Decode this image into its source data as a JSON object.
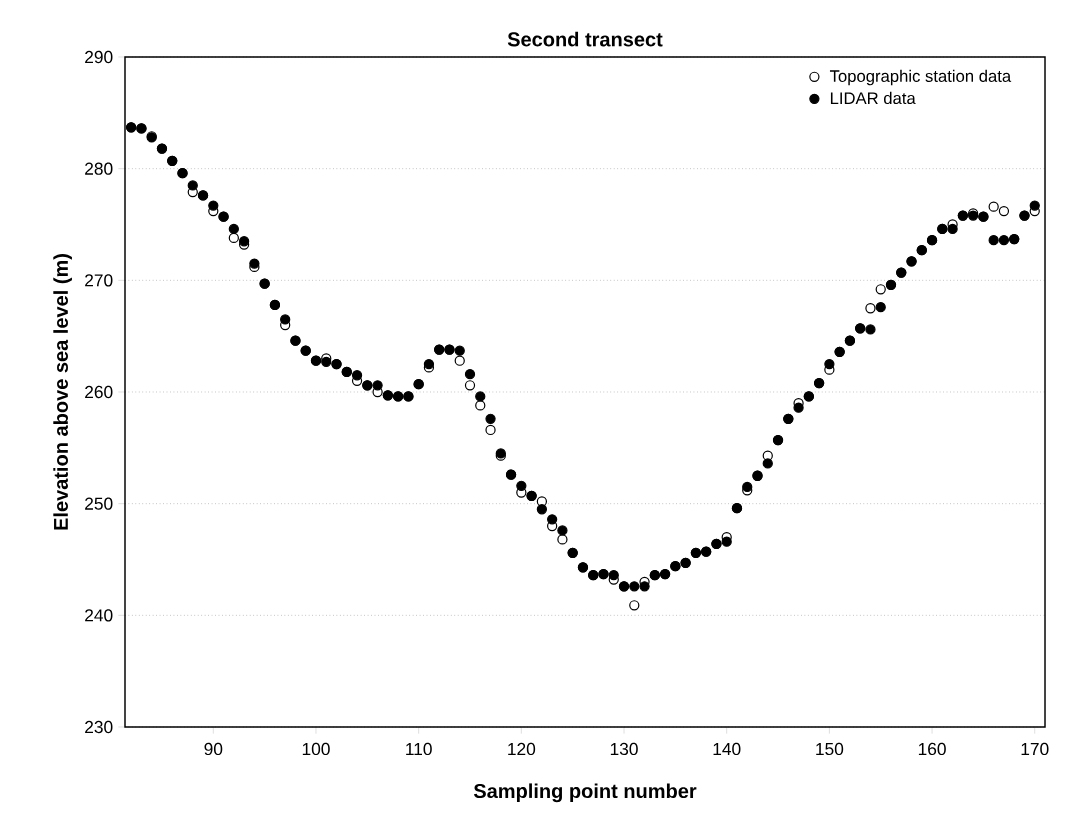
{
  "chart_data": {
    "type": "scatter",
    "title": "Second transect",
    "xlabel": "Sampling point number",
    "ylabel": "Elevation above sea level (m)",
    "x": [
      82,
      83,
      84,
      85,
      86,
      87,
      88,
      89,
      90,
      91,
      92,
      93,
      94,
      95,
      96,
      97,
      98,
      99,
      100,
      101,
      102,
      103,
      104,
      105,
      106,
      107,
      108,
      109,
      110,
      111,
      112,
      113,
      114,
      115,
      116,
      117,
      118,
      119,
      120,
      121,
      122,
      123,
      124,
      125,
      126,
      127,
      128,
      129,
      130,
      131,
      132,
      133,
      134,
      135,
      136,
      137,
      138,
      139,
      140,
      141,
      142,
      143,
      144,
      145,
      146,
      147,
      148,
      149,
      150,
      151,
      152,
      153,
      154,
      155,
      156,
      157,
      158,
      159,
      160,
      161,
      162,
      163,
      164,
      165,
      166,
      167,
      168,
      169,
      170
    ],
    "series": [
      {
        "name": "Topographic station data",
        "color": "#ffffff",
        "values": [
          283.7,
          283.6,
          282.9,
          281.8,
          280.7,
          279.6,
          277.9,
          277.6,
          276.2,
          275.7,
          273.8,
          273.2,
          271.2,
          269.7,
          267.8,
          266.0,
          264.6,
          263.7,
          262.8,
          263.0,
          262.5,
          261.8,
          261.0,
          260.6,
          260.0,
          259.7,
          259.6,
          259.6,
          260.7,
          262.2,
          263.8,
          263.8,
          262.8,
          260.6,
          258.8,
          256.6,
          254.3,
          252.6,
          251.0,
          250.7,
          250.2,
          248.0,
          246.8,
          245.6,
          244.3,
          243.6,
          243.7,
          243.2,
          242.6,
          240.9,
          243.0,
          243.6,
          243.7,
          244.4,
          244.7,
          245.6,
          245.7,
          246.4,
          247.0,
          249.6,
          251.2,
          252.5,
          254.3,
          255.7,
          257.6,
          259.0,
          259.6,
          260.8,
          262.0,
          263.6,
          264.6,
          265.7,
          267.5,
          269.2,
          269.6,
          270.7,
          271.7,
          272.7,
          273.6,
          274.6,
          275.0,
          275.8,
          276.0,
          275.7,
          276.6,
          276.2,
          273.7,
          275.8,
          276.2
        ]
      },
      {
        "name": "LIDAR data",
        "color": "#000000",
        "values": [
          283.7,
          283.6,
          282.8,
          281.8,
          280.7,
          279.6,
          278.5,
          277.6,
          276.7,
          275.7,
          274.6,
          273.5,
          271.5,
          269.7,
          267.8,
          266.5,
          264.6,
          263.7,
          262.8,
          262.7,
          262.5,
          261.8,
          261.5,
          260.6,
          260.6,
          259.7,
          259.6,
          259.6,
          260.7,
          262.5,
          263.8,
          263.8,
          263.7,
          261.6,
          259.6,
          257.6,
          254.5,
          252.6,
          251.6,
          250.7,
          249.5,
          248.6,
          247.6,
          245.6,
          244.3,
          243.6,
          243.7,
          243.6,
          242.6,
          242.6,
          242.6,
          243.6,
          243.7,
          244.4,
          244.7,
          245.6,
          245.7,
          246.4,
          246.6,
          249.6,
          251.5,
          252.5,
          253.6,
          255.7,
          257.6,
          258.6,
          259.6,
          260.8,
          262.5,
          263.6,
          264.6,
          265.7,
          265.6,
          267.6,
          269.6,
          270.7,
          271.7,
          272.7,
          273.6,
          274.6,
          274.6,
          275.8,
          275.8,
          275.7,
          273.6,
          273.6,
          273.7,
          275.8,
          276.7
        ]
      }
    ],
    "xlim": [
      81.4,
      171
    ],
    "ylim": [
      230,
      290
    ],
    "xticks": [
      90,
      100,
      110,
      120,
      130,
      140,
      150,
      160,
      170
    ],
    "yticks": [
      230,
      240,
      250,
      260,
      270,
      280,
      290
    ],
    "grid": "y",
    "legend": "top right",
    "marker": "circle"
  }
}
